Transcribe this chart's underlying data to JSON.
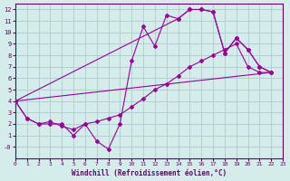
{
  "xlabel": "Windchill (Refroidissement éolien,°C)",
  "bg_color": "#d4ecea",
  "grid_color": "#b0d0d0",
  "line_color": "#990099",
  "xlim": [
    0,
    23
  ],
  "ylim": [
    -1,
    12.5
  ],
  "xticks": [
    0,
    1,
    2,
    3,
    4,
    5,
    6,
    7,
    8,
    9,
    10,
    11,
    12,
    13,
    14,
    15,
    16,
    17,
    18,
    19,
    20,
    21,
    22,
    23
  ],
  "yticks": [
    0,
    1,
    2,
    3,
    4,
    5,
    6,
    7,
    8,
    9,
    10,
    11,
    12
  ],
  "ytick_labels": [
    "-0",
    "1",
    "2",
    "3",
    "4",
    "5",
    "6",
    "7",
    "8",
    "9",
    "10",
    "11",
    "12"
  ],
  "series": [
    {
      "x": [
        0,
        1,
        2,
        3,
        4,
        5,
        6,
        7,
        8,
        9,
        10,
        11,
        12,
        13,
        14,
        15,
        16,
        17,
        18,
        19,
        20,
        21,
        22
      ],
      "y": [
        4.0,
        2.5,
        2.0,
        2.0,
        2.0,
        1.0,
        2.0,
        0.5,
        -0.2,
        2.0,
        7.5,
        10.5,
        8.8,
        11.5,
        11.2,
        12.0,
        12.0,
        11.8,
        8.2,
        9.5,
        8.5,
        7.0,
        6.5
      ],
      "marker": true
    },
    {
      "x": [
        0,
        1,
        2,
        3,
        4,
        5,
        6,
        7,
        8,
        9,
        10,
        11,
        12,
        13,
        14,
        15,
        16,
        17,
        18,
        19,
        20,
        21,
        22
      ],
      "y": [
        4.0,
        2.5,
        2.0,
        2.2,
        1.8,
        1.5,
        2.0,
        2.2,
        2.5,
        2.8,
        3.5,
        4.2,
        5.0,
        5.5,
        6.2,
        7.0,
        7.5,
        8.0,
        8.5,
        9.0,
        7.0,
        6.5,
        6.5
      ],
      "marker": true
    },
    {
      "x": [
        0,
        22
      ],
      "y": [
        4.0,
        6.5
      ],
      "marker": false
    },
    {
      "x": [
        0,
        14,
        15,
        16,
        17,
        18,
        19,
        20,
        21,
        22
      ],
      "y": [
        4.0,
        11.2,
        12.0,
        12.0,
        11.8,
        8.2,
        9.5,
        8.5,
        7.0,
        6.5
      ],
      "marker": true
    }
  ]
}
